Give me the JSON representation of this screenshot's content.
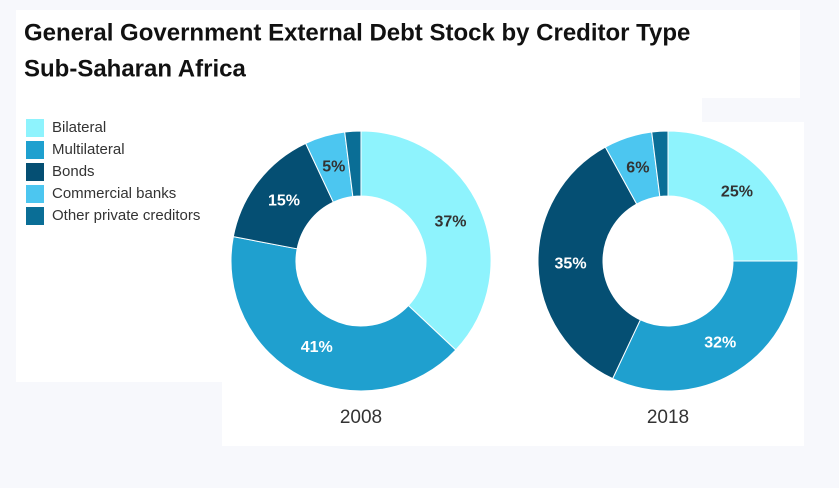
{
  "chart_data": {
    "type": "donut",
    "title": "General Government External Debt Stock by Creditor Type",
    "subtitle": "Sub-Saharan Africa",
    "categories": [
      "Bilateral",
      "Multilateral",
      "Bonds",
      "Commercial banks",
      "Other private creditors"
    ],
    "colors": [
      "#8ef3fd",
      "#1fa0cf",
      "#054f73",
      "#4cc6f0",
      "#0a6e96"
    ],
    "series": [
      {
        "name": "2008",
        "values": [
          37,
          41,
          15,
          5,
          2
        ],
        "value_labels": [
          "37%",
          "41%",
          "15%",
          "5%",
          null
        ]
      },
      {
        "name": "2018",
        "values": [
          25,
          32,
          35,
          6,
          2
        ],
        "value_labels": [
          "25%",
          "32%",
          "35%",
          "6%",
          null
        ]
      }
    ],
    "legend": "top-left"
  }
}
